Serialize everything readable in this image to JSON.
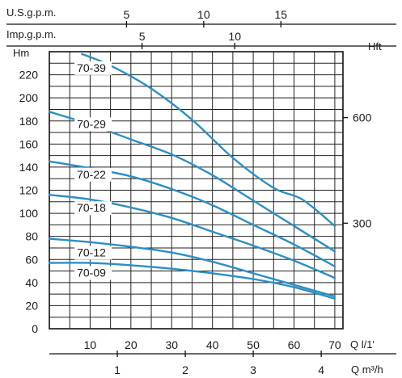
{
  "chart_data": {
    "type": "line",
    "title": "",
    "ylabel": "Hm",
    "y2label": "Hft",
    "xlabel": "Q l/1'",
    "xlabel2": "Q m³/h",
    "top_axis_1_label": "U.S.g.p.m.",
    "top_axis_2_label": "Imp.g.p.m.",
    "xlim": [
      0,
      72
    ],
    "ylim": [
      0,
      240
    ],
    "grid": true,
    "line_color": "#2b8fc4",
    "x_ticks": [
      "10",
      "20",
      "30",
      "40",
      "50",
      "60",
      "70"
    ],
    "y_ticks": [
      "0",
      "20",
      "40",
      "60",
      "80",
      "100",
      "120",
      "140",
      "160",
      "180",
      "200",
      "220"
    ],
    "usgpm_ticks": [
      "5",
      "10",
      "15"
    ],
    "impgpm_ticks": [
      "5",
      "10"
    ],
    "hft_ticks": [
      "300",
      "600"
    ],
    "m3h_ticks": [
      "1",
      "2",
      "3",
      "4"
    ],
    "series": [
      {
        "name": "70-39",
        "x": [
          8,
          15,
          25,
          35,
          45,
          55,
          62,
          70
        ],
        "y": [
          238,
          228,
          208,
          181,
          148,
          122,
          112,
          89
        ]
      },
      {
        "name": "70-29",
        "x": [
          0,
          10,
          20,
          30,
          40,
          50,
          60,
          70
        ],
        "y": [
          188,
          177,
          164,
          151,
          133,
          111,
          89,
          67
        ]
      },
      {
        "name": "70-22",
        "x": [
          0,
          10,
          20,
          30,
          40,
          50,
          60,
          70
        ],
        "y": [
          145,
          139,
          132,
          121,
          107,
          90,
          73,
          54
        ]
      },
      {
        "name": "70-18",
        "x": [
          0,
          10,
          20,
          30,
          40,
          50,
          60,
          70
        ],
        "y": [
          116,
          112,
          105,
          96,
          84,
          72,
          59,
          44
        ]
      },
      {
        "name": "70-12",
        "x": [
          0,
          10,
          20,
          30,
          40,
          50,
          60,
          70
        ],
        "y": [
          78,
          75,
          71,
          66,
          58,
          48,
          38,
          28
        ]
      },
      {
        "name": "70-09",
        "x": [
          0,
          10,
          20,
          30,
          40,
          50,
          60,
          70
        ],
        "y": [
          57,
          57,
          55,
          52,
          48,
          43,
          36,
          26
        ]
      }
    ]
  }
}
